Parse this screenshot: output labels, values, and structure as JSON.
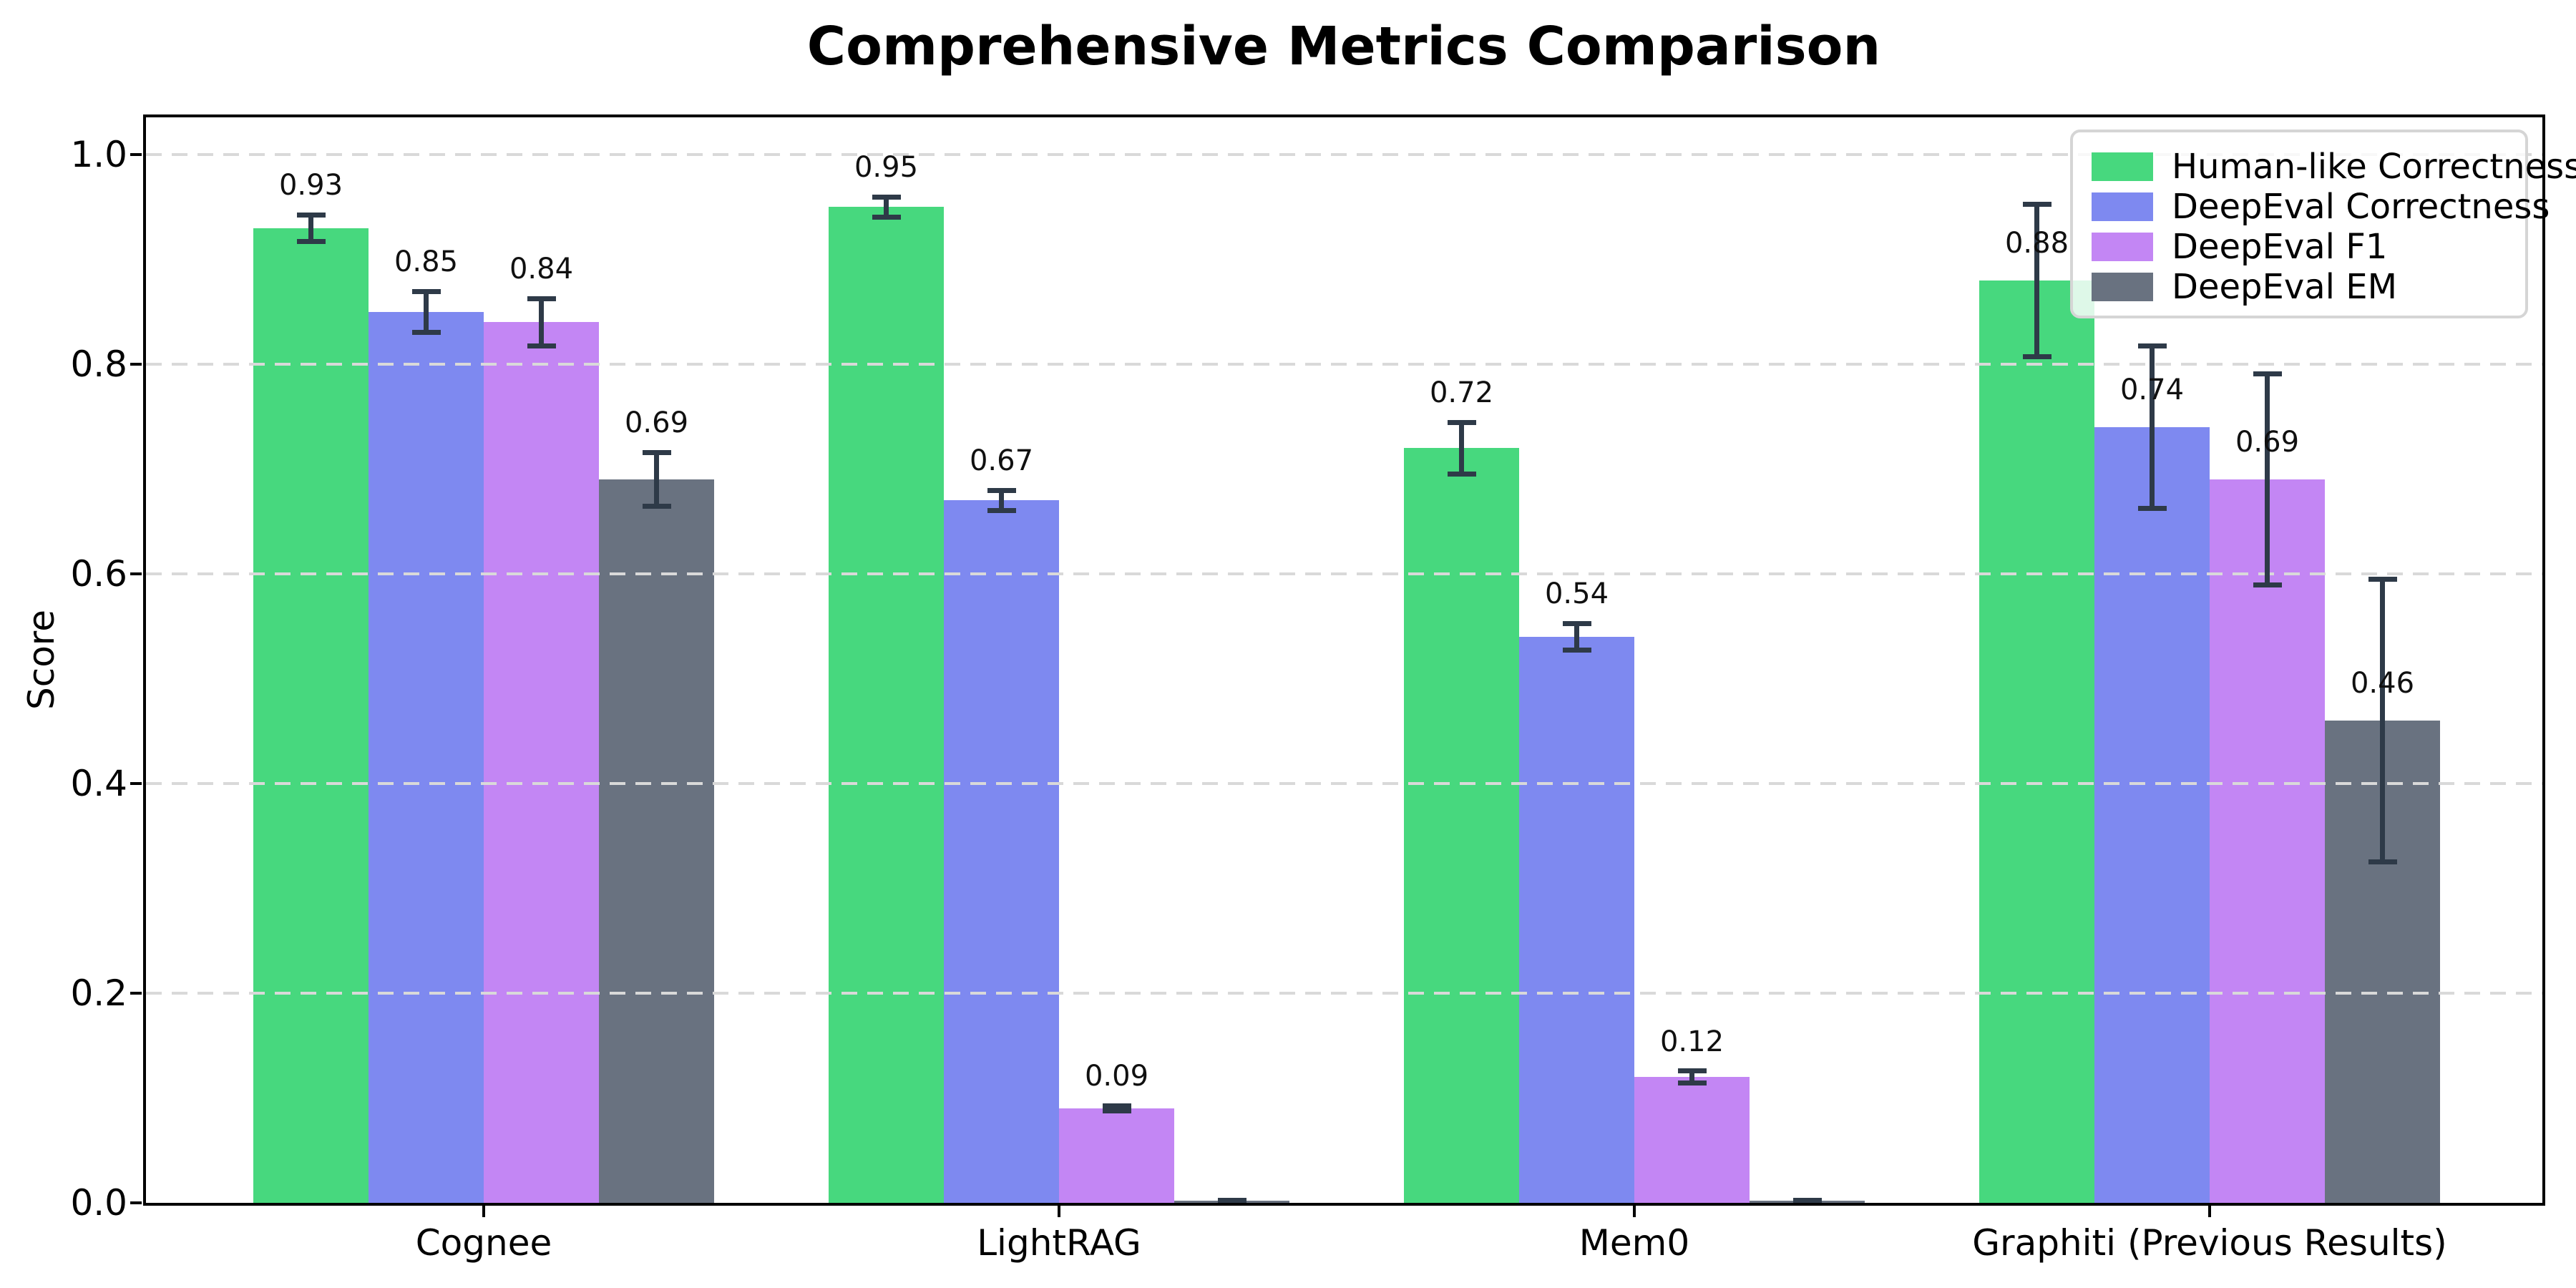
{
  "chart_data": {
    "type": "bar",
    "title": "Comprehensive Metrics Comparison",
    "xlabel": "",
    "ylabel": "Score",
    "categories": [
      "Cognee",
      "LightRAG",
      "Mem0",
      "Graphiti (Previous Results)"
    ],
    "series": [
      {
        "name": "Human-like Correctness",
        "color": "#47D87E",
        "values": [
          0.93,
          0.95,
          0.72,
          0.88
        ],
        "errors": [
          0.015,
          0.012,
          0.027,
          0.075
        ],
        "labels": [
          "0.93",
          "0.95",
          "0.72",
          "0.88"
        ]
      },
      {
        "name": "DeepEval Correctness",
        "color": "#7E89F0",
        "values": [
          0.85,
          0.67,
          0.54,
          0.74
        ],
        "errors": [
          0.022,
          0.012,
          0.015,
          0.08
        ],
        "labels": [
          "0.85",
          "0.67",
          "0.54",
          "0.74"
        ]
      },
      {
        "name": "DeepEval F1",
        "color": "#C386F4",
        "values": [
          0.84,
          0.09,
          0.12,
          0.69
        ],
        "errors": [
          0.025,
          0.005,
          0.008,
          0.103
        ],
        "labels": [
          "0.84",
          "0.09",
          "0.12",
          "0.69"
        ]
      },
      {
        "name": "DeepEval EM",
        "color": "#697280",
        "values": [
          0.69,
          0.002,
          0.002,
          0.46
        ],
        "errors": [
          0.028,
          0.003,
          0.003,
          0.137
        ],
        "labels": [
          "0.69",
          null,
          null,
          "0.46"
        ]
      }
    ],
    "error_bars": true,
    "error_bar_color": "#2E3A48",
    "yticks": [
      "0.0",
      "0.2",
      "0.4",
      "0.6",
      "0.8",
      "1.0"
    ],
    "ytick_values": [
      0.0,
      0.2,
      0.4,
      0.6,
      0.8,
      1.0
    ],
    "ylim": [
      0,
      1.04
    ],
    "grid": "horizontal-dashed",
    "grid_color": "#d9d9d9",
    "legend_position": "upper right"
  }
}
